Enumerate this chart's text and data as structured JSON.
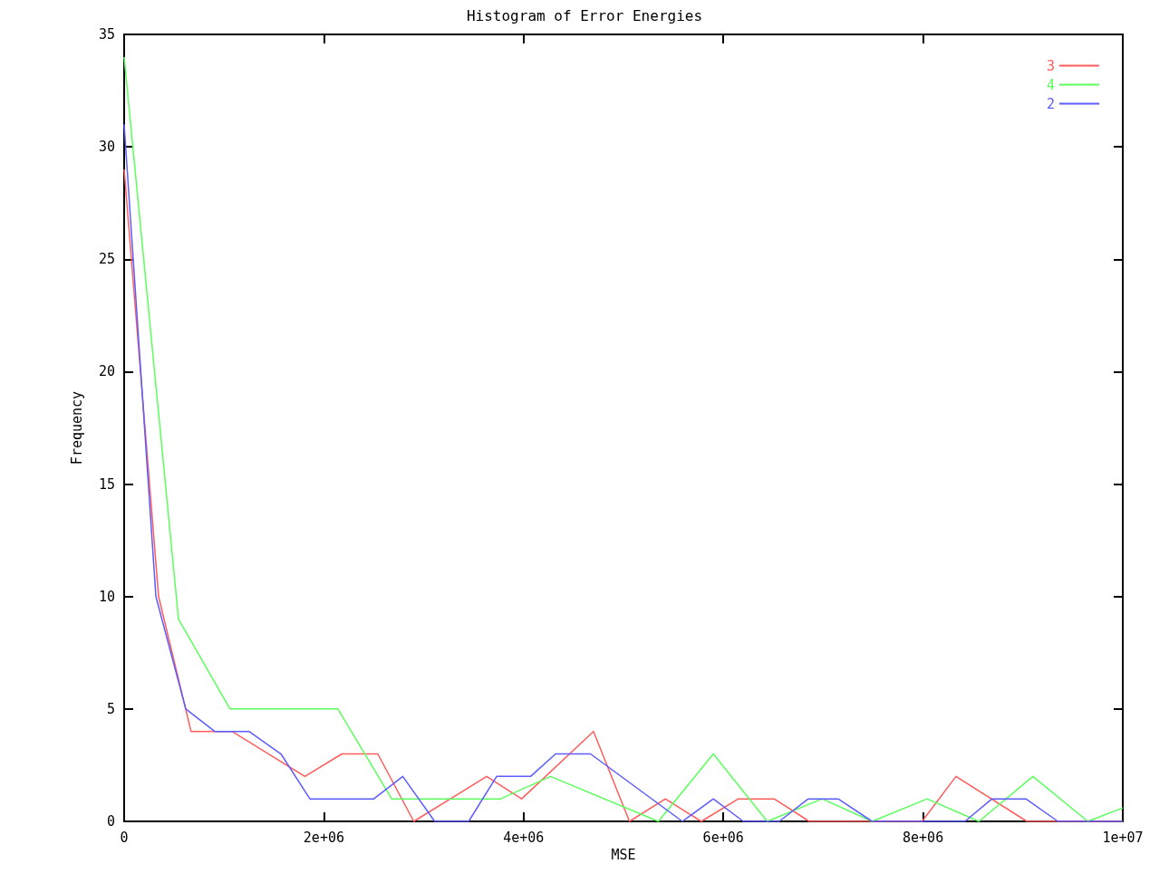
{
  "chart_data": {
    "type": "line",
    "title": "Histogram of Error Energies",
    "xlabel": "MSE",
    "ylabel": "Frequency",
    "xlim": [
      0,
      10000000
    ],
    "xticks": [
      0,
      {
        "value": 2000000,
        "label": "2e+06"
      },
      {
        "value": 4000000,
        "label": "4e+06"
      },
      {
        "value": 6000000,
        "label": "6e+06"
      },
      {
        "value": 8000000,
        "label": "8e+06"
      },
      {
        "value": 10000000,
        "label": "1e+07"
      }
    ],
    "ylim": [
      0,
      35
    ],
    "yticks": [
      0,
      5,
      10,
      15,
      20,
      25,
      30,
      35
    ],
    "grid": false,
    "legend": "top right",
    "marker": "none",
    "line_style": "solid",
    "series": [
      {
        "name": "3",
        "color": "#ff5c5c",
        "x": [
          0,
          345000,
          670000,
          1080000,
          1810000,
          2180000,
          2540000,
          2900000,
          3630000,
          3980000,
          4700000,
          5060000,
          5420000,
          5780000,
          6150000,
          6510000,
          6860000,
          7990000,
          8330000,
          9040000,
          10000000
        ],
        "values": [
          29,
          10,
          4,
          4,
          2,
          3,
          3,
          0,
          2,
          1,
          4,
          0,
          1,
          0,
          1,
          1,
          0,
          0,
          2,
          0,
          0
        ]
      },
      {
        "name": "4",
        "color": "#5cff5c",
        "x": [
          0,
          544000,
          1060000,
          2140000,
          2680000,
          3770000,
          4270000,
          5350000,
          5900000,
          6440000,
          6990000,
          7490000,
          8040000,
          8560000,
          9100000,
          9650000,
          10000000
        ],
        "values": [
          34,
          9,
          5,
          5,
          1,
          1,
          2,
          0,
          3,
          0,
          1,
          0,
          1,
          0,
          2,
          0,
          0.6
        ]
      },
      {
        "name": "2",
        "color": "#5c5cff",
        "x": [
          0,
          318000,
          617000,
          907000,
          1250000,
          1570000,
          1860000,
          2500000,
          2790000,
          3110000,
          3450000,
          3730000,
          4070000,
          4320000,
          4670000,
          5590000,
          5900000,
          6200000,
          6560000,
          6850000,
          7150000,
          7490000,
          8420000,
          8690000,
          9030000,
          9350000,
          10000000
        ],
        "values": [
          31,
          10,
          5,
          4,
          4,
          3,
          1,
          1,
          2,
          0,
          0,
          2,
          2,
          3,
          3,
          0,
          1,
          0,
          0,
          1,
          1,
          0,
          0,
          1,
          1,
          0,
          0
        ]
      }
    ]
  }
}
